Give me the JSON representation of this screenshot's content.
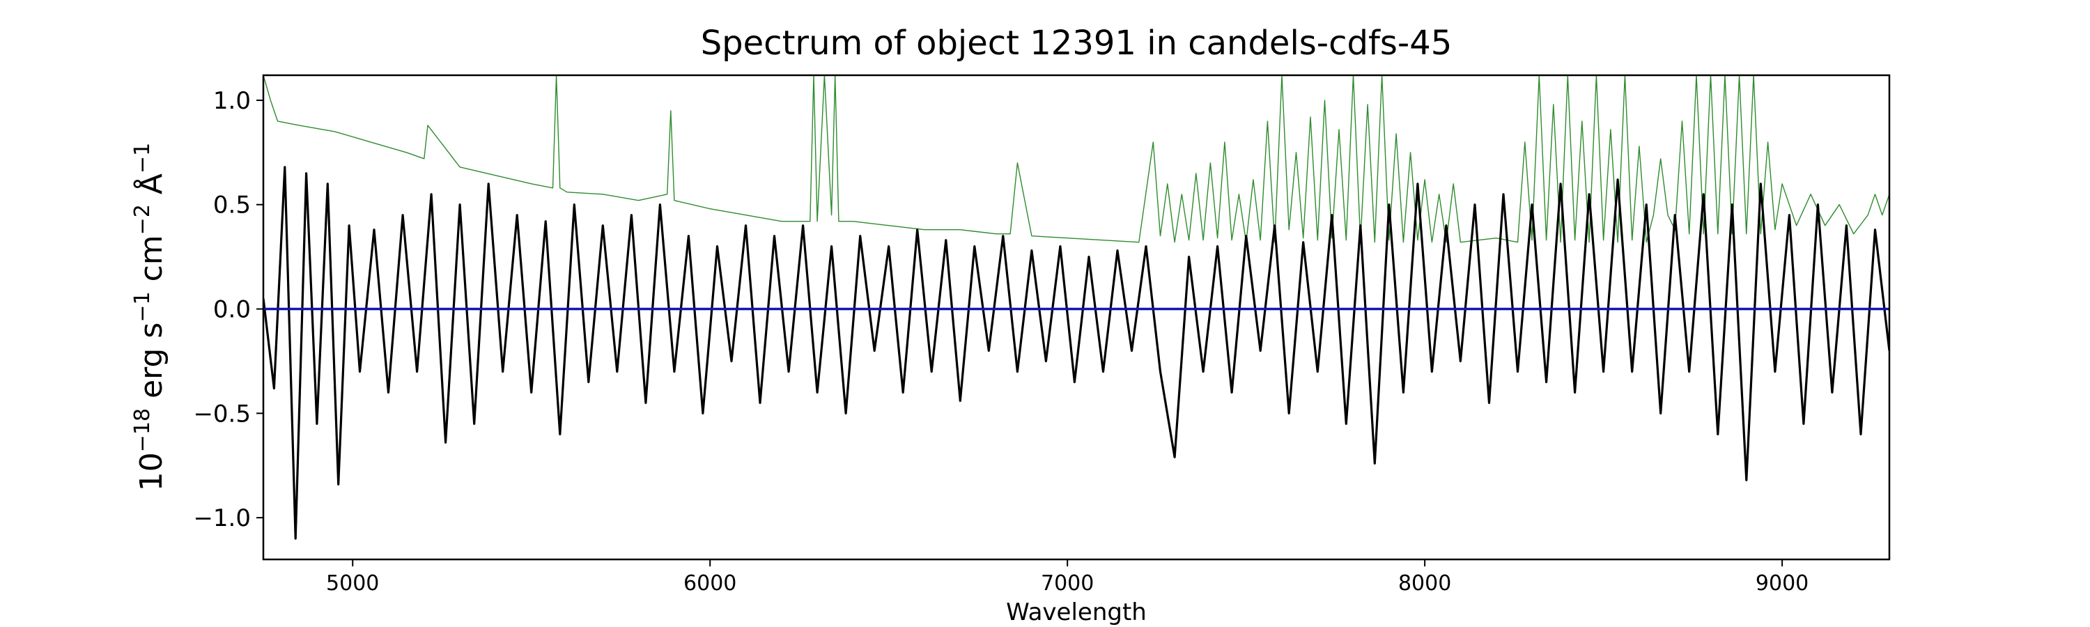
{
  "chart_data": {
    "type": "line",
    "title": "Spectrum of object 12391 in candels-cdfs-45",
    "xlabel": "Wavelength",
    "ylabel": {
      "base": "10",
      "exp": "−18",
      "unit1": " erg s",
      "exp1": "−1",
      "unit2": " cm",
      "exp2": "−2",
      "unit3": " Å",
      "exp3": "−1"
    },
    "xlim": [
      4750,
      9300
    ],
    "ylim": [
      -1.2,
      1.12
    ],
    "xticks": [
      5000,
      6000,
      7000,
      8000,
      9000
    ],
    "xtick_labels": [
      "5000",
      "6000",
      "7000",
      "8000",
      "9000"
    ],
    "yticks": [
      -1.0,
      -0.5,
      0.0,
      0.5,
      1.0
    ],
    "ytick_labels": [
      "−1.0",
      "−0.5",
      "0.0",
      "0.5",
      "1.0"
    ],
    "grid": false,
    "series": [
      {
        "role": "flux",
        "color": "#000000",
        "x": [
          4750,
          4780,
          4810,
          4840,
          4870,
          4900,
          4930,
          4960,
          4990,
          5020,
          5060,
          5100,
          5140,
          5180,
          5220,
          5260,
          5300,
          5340,
          5380,
          5420,
          5460,
          5500,
          5540,
          5580,
          5620,
          5660,
          5700,
          5740,
          5780,
          5820,
          5860,
          5900,
          5940,
          5980,
          6020,
          6060,
          6100,
          6140,
          6180,
          6220,
          6260,
          6300,
          6340,
          6380,
          6420,
          6460,
          6500,
          6540,
          6580,
          6620,
          6660,
          6700,
          6740,
          6780,
          6820,
          6860,
          6900,
          6940,
          6980,
          7020,
          7060,
          7100,
          7140,
          7180,
          7220,
          7260,
          7300,
          7340,
          7380,
          7420,
          7460,
          7500,
          7540,
          7580,
          7620,
          7660,
          7700,
          7740,
          7780,
          7820,
          7860,
          7900,
          7940,
          7980,
          8020,
          8060,
          8100,
          8140,
          8180,
          8220,
          8260,
          8300,
          8340,
          8380,
          8420,
          8460,
          8500,
          8540,
          8580,
          8620,
          8660,
          8700,
          8740,
          8780,
          8820,
          8860,
          8900,
          8940,
          8980,
          9020,
          9060,
          9100,
          9140,
          9180,
          9220,
          9260,
          9300
        ],
        "y": [
          0.05,
          -0.38,
          0.68,
          -1.1,
          0.65,
          -0.55,
          0.6,
          -0.84,
          0.4,
          -0.3,
          0.38,
          -0.4,
          0.45,
          -0.3,
          0.55,
          -0.64,
          0.5,
          -0.55,
          0.6,
          -0.3,
          0.45,
          -0.4,
          0.42,
          -0.6,
          0.5,
          -0.35,
          0.4,
          -0.3,
          0.45,
          -0.45,
          0.5,
          -0.3,
          0.35,
          -0.5,
          0.3,
          -0.25,
          0.4,
          -0.45,
          0.35,
          -0.3,
          0.4,
          -0.4,
          0.3,
          -0.5,
          0.35,
          -0.2,
          0.3,
          -0.4,
          0.38,
          -0.3,
          0.33,
          -0.44,
          0.3,
          -0.2,
          0.35,
          -0.3,
          0.28,
          -0.25,
          0.3,
          -0.35,
          0.25,
          -0.3,
          0.28,
          -0.2,
          0.3,
          -0.3,
          -0.71,
          0.25,
          -0.3,
          0.3,
          -0.4,
          0.35,
          -0.2,
          0.4,
          -0.5,
          0.32,
          -0.3,
          0.45,
          -0.55,
          0.4,
          -0.74,
          0.5,
          -0.4,
          0.6,
          -0.3,
          0.4,
          -0.25,
          0.5,
          -0.45,
          0.55,
          -0.3,
          0.5,
          -0.35,
          0.6,
          -0.4,
          0.55,
          -0.3,
          0.62,
          -0.3,
          0.5,
          -0.5,
          0.45,
          -0.3,
          0.55,
          -0.6,
          0.5,
          -0.82,
          0.6,
          -0.3,
          0.45,
          -0.55,
          0.5,
          -0.4,
          0.4,
          -0.6,
          0.38,
          -0.2
        ]
      },
      {
        "role": "error",
        "color": "#2e8b2e",
        "x": [
          4750,
          4770,
          4790,
          4850,
          4950,
          5050,
          5150,
          5200,
          5210,
          5300,
          5400,
          5500,
          5560,
          5570,
          5580,
          5600,
          5700,
          5800,
          5880,
          5890,
          5900,
          6000,
          6100,
          6200,
          6280,
          6290,
          6300,
          6320,
          6340,
          6350,
          6360,
          6400,
          6500,
          6600,
          6700,
          6800,
          6840,
          6860,
          6900,
          7000,
          7100,
          7200,
          7240,
          7260,
          7280,
          7300,
          7320,
          7340,
          7360,
          7380,
          7400,
          7420,
          7440,
          7460,
          7480,
          7500,
          7520,
          7540,
          7560,
          7580,
          7600,
          7620,
          7640,
          7660,
          7680,
          7700,
          7720,
          7740,
          7760,
          7780,
          7800,
          7820,
          7840,
          7860,
          7880,
          7900,
          7920,
          7940,
          7960,
          7980,
          8000,
          8020,
          8040,
          8060,
          8080,
          8100,
          8200,
          8260,
          8280,
          8300,
          8320,
          8340,
          8360,
          8380,
          8400,
          8420,
          8440,
          8460,
          8480,
          8500,
          8520,
          8540,
          8560,
          8580,
          8600,
          8620,
          8640,
          8660,
          8680,
          8700,
          8720,
          8740,
          8760,
          8780,
          8800,
          8820,
          8840,
          8860,
          8880,
          8900,
          8920,
          8940,
          8960,
          8980,
          9000,
          9040,
          9080,
          9120,
          9160,
          9200,
          9240,
          9260,
          9280,
          9300
        ],
        "y": [
          1.12,
          1.0,
          0.9,
          0.88,
          0.85,
          0.8,
          0.75,
          0.72,
          0.88,
          0.68,
          0.64,
          0.6,
          0.58,
          1.12,
          0.58,
          0.56,
          0.55,
          0.52,
          0.55,
          0.95,
          0.52,
          0.48,
          0.45,
          0.42,
          0.42,
          1.12,
          0.42,
          1.12,
          0.45,
          1.12,
          0.42,
          0.42,
          0.4,
          0.38,
          0.38,
          0.36,
          0.36,
          0.7,
          0.35,
          0.34,
          0.33,
          0.32,
          0.8,
          0.35,
          0.6,
          0.32,
          0.55,
          0.33,
          0.65,
          0.33,
          0.7,
          0.34,
          0.8,
          0.33,
          0.55,
          0.32,
          0.62,
          0.33,
          0.9,
          0.32,
          1.12,
          0.38,
          0.75,
          0.34,
          0.92,
          0.33,
          1.0,
          0.34,
          0.86,
          0.33,
          1.12,
          0.33,
          0.98,
          0.32,
          1.12,
          0.33,
          0.84,
          0.32,
          0.75,
          0.33,
          0.62,
          0.32,
          0.55,
          0.32,
          0.6,
          0.32,
          0.34,
          0.32,
          0.8,
          0.33,
          1.12,
          0.33,
          0.98,
          0.32,
          1.12,
          0.33,
          0.9,
          0.32,
          1.12,
          0.33,
          0.86,
          0.32,
          1.12,
          0.33,
          0.78,
          0.32,
          0.45,
          0.72,
          0.45,
          0.38,
          0.9,
          0.36,
          1.12,
          0.36,
          1.12,
          0.36,
          1.12,
          0.36,
          1.12,
          0.36,
          1.12,
          0.36,
          0.8,
          0.38,
          0.6,
          0.4,
          0.55,
          0.4,
          0.5,
          0.36,
          0.45,
          0.55,
          0.45,
          0.55
        ]
      },
      {
        "role": "zero",
        "color": "#1414b4",
        "x": [
          4750,
          9300
        ],
        "y": [
          0.0,
          0.0
        ]
      }
    ]
  }
}
